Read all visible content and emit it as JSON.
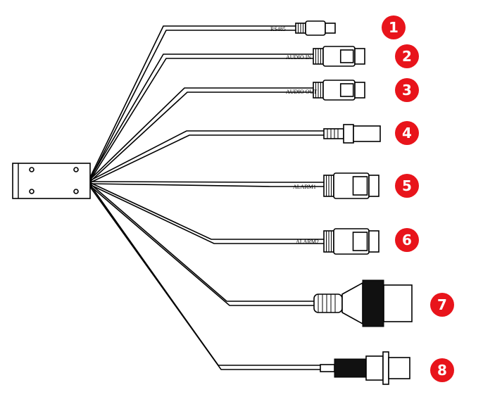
{
  "labels": {
    "rs485": "RS485",
    "audio_in": "AUDIO IN",
    "audio_out": "AUDIO OUT",
    "alarm1": "ALARM1",
    "alarm2": "ALARM2"
  },
  "callouts": [
    "1",
    "2",
    "3",
    "4",
    "5",
    "6",
    "7",
    "8"
  ],
  "colors": {
    "callout": "#e8141b",
    "line": "#000000"
  }
}
